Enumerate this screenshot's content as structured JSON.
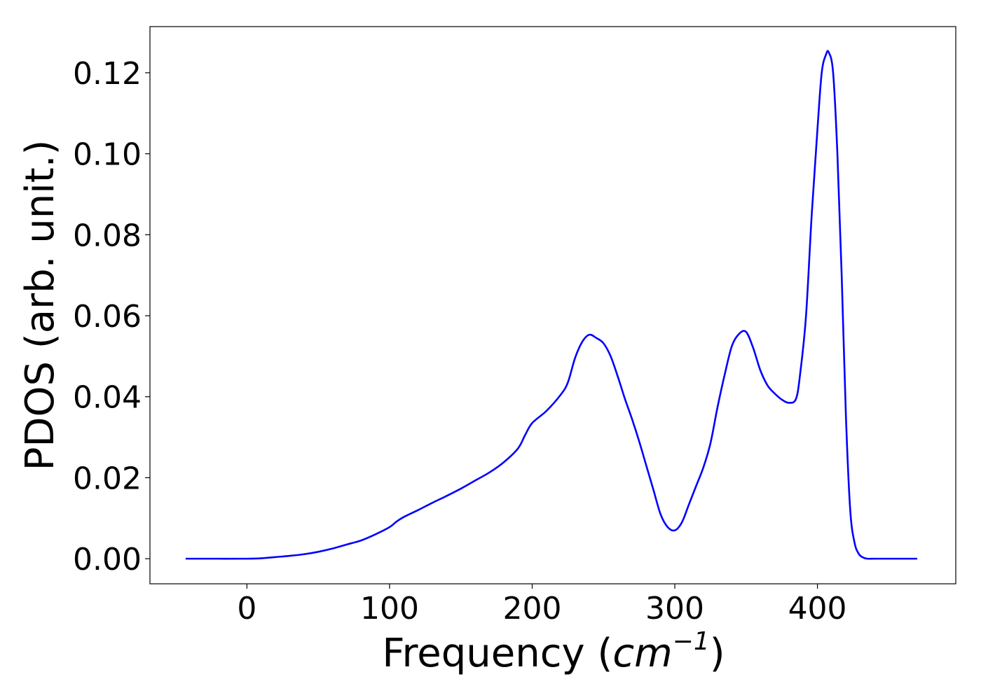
{
  "chart_data": {
    "type": "line",
    "title": "",
    "xlabel_main": "Frequency (",
    "xlabel_unit_base": "cm",
    "xlabel_unit_exp": "−1",
    "xlabel_close": ")",
    "ylabel": "PDOS (arb. unit.)",
    "xlim": [
      -68,
      497
    ],
    "ylim": [
      -0.0062,
      0.1314
    ],
    "grid": false,
    "legend": "none",
    "line_color": "#0000ff",
    "x_ticks": [
      0,
      100,
      200,
      300,
      400
    ],
    "x_tick_labels": [
      "0",
      "100",
      "200",
      "300",
      "400"
    ],
    "y_ticks": [
      0.0,
      0.02,
      0.04,
      0.06,
      0.08,
      0.1,
      0.12
    ],
    "y_tick_labels": [
      "0.00",
      "0.02",
      "0.04",
      "0.06",
      "0.08",
      "0.10",
      "0.12"
    ],
    "series": [
      {
        "x": [
          -43,
          -20,
          0,
          10,
          20,
          30,
          40,
          50,
          60,
          70,
          80,
          90,
          100,
          105,
          110,
          120,
          130,
          140,
          150,
          160,
          170,
          180,
          190,
          195,
          200,
          210,
          220,
          225,
          230,
          235,
          240,
          245,
          250,
          255,
          260,
          265,
          270,
          275,
          280,
          285,
          290,
          295,
          300,
          305,
          310,
          315,
          320,
          325,
          330,
          335,
          340,
          345,
          350,
          355,
          360,
          365,
          370,
          375,
          380,
          385,
          388,
          392,
          396,
          400,
          403,
          406,
          408,
          411,
          414,
          417,
          420,
          423,
          426,
          429,
          432,
          435,
          440,
          450,
          470
        ],
        "y": [
          0.0,
          0.0,
          0.0,
          0.0001,
          0.0004,
          0.0007,
          0.0011,
          0.0017,
          0.0025,
          0.0035,
          0.0045,
          0.006,
          0.0078,
          0.0092,
          0.0103,
          0.012,
          0.0138,
          0.0155,
          0.0173,
          0.0193,
          0.0213,
          0.0238,
          0.0272,
          0.0305,
          0.0335,
          0.0365,
          0.0405,
          0.0435,
          0.0495,
          0.0535,
          0.0553,
          0.0545,
          0.0532,
          0.05,
          0.045,
          0.0395,
          0.0345,
          0.029,
          0.023,
          0.017,
          0.011,
          0.0078,
          0.007,
          0.009,
          0.0135,
          0.018,
          0.0225,
          0.0285,
          0.0375,
          0.0455,
          0.0525,
          0.0555,
          0.056,
          0.052,
          0.0465,
          0.0428,
          0.0408,
          0.0393,
          0.0385,
          0.0395,
          0.046,
          0.06,
          0.085,
          0.106,
          0.12,
          0.1245,
          0.125,
          0.12,
          0.1,
          0.07,
          0.035,
          0.012,
          0.004,
          0.0012,
          0.0003,
          0.0,
          0.0,
          0.0,
          0.0
        ]
      }
    ]
  }
}
